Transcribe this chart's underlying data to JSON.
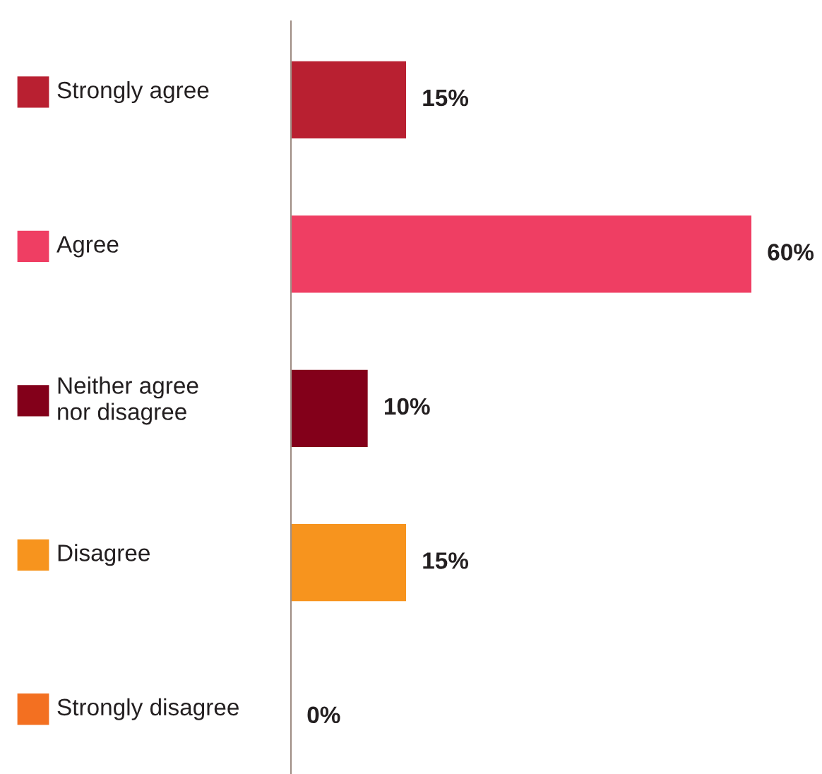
{
  "chart_data": {
    "type": "bar",
    "orientation": "horizontal",
    "categories": [
      "Strongly agree",
      "Agree",
      "Neither agree\nnor disagree",
      "Disagree",
      "Strongly disagree"
    ],
    "values": [
      15,
      60,
      10,
      15,
      0
    ],
    "colors": [
      "#b92031",
      "#ef3e63",
      "#83001a",
      "#f7941e",
      "#f37021"
    ],
    "value_labels": [
      "15%",
      "60%",
      "10%",
      "15%",
      "0%"
    ],
    "legend": false
  }
}
